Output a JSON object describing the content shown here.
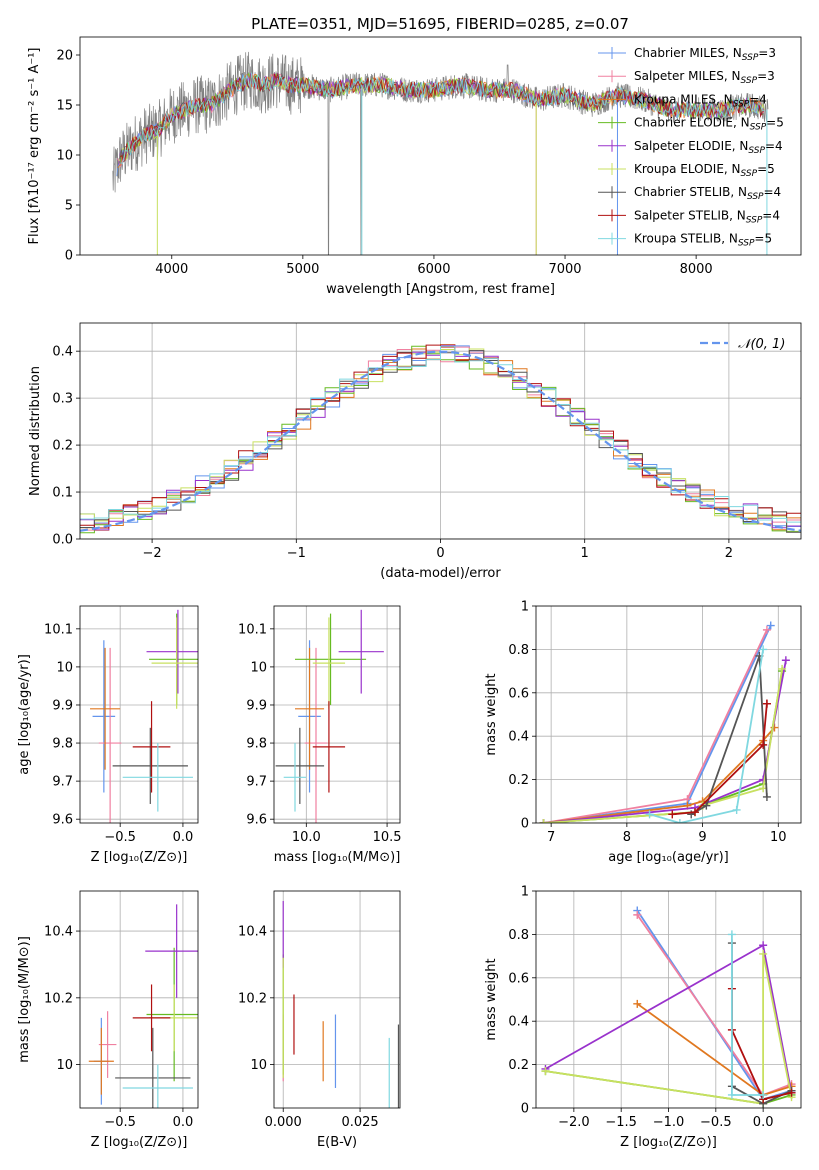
{
  "figure_title": "PLATE=0351, MJD=51695, FIBERID=0285, z=0.07",
  "colors": {
    "blue": "#6495ed",
    "pink": "#f080a0",
    "orange": "#e07820",
    "green": "#66bb22",
    "purple": "#9932cc",
    "yellowgreen": "#c8e060",
    "darkgray": "#555555",
    "red": "#b01010",
    "cyan": "#80d8e0",
    "grid": "#b0b0b0"
  },
  "chart_data": [
    {
      "id": "spectrum",
      "type": "line",
      "xlabel": "wavelength [Angstrom, rest frame]",
      "ylabel": "Flux [fλ10⁻¹⁷ erg cm⁻² s⁻¹ A⁻¹]",
      "xlim": [
        3300,
        8800
      ],
      "ylim": [
        0,
        21.8
      ],
      "xticks": [
        4000,
        5000,
        6000,
        7000,
        8000
      ],
      "yticks": [
        0,
        5,
        10,
        15,
        20
      ],
      "grid": false,
      "legend_position": "top-right",
      "data_x": [
        3550,
        3600,
        3700,
        3800,
        3900,
        4000,
        4100,
        4200,
        4300,
        4400,
        4500,
        4600,
        4700,
        4800,
        4900,
        5000,
        5200,
        5400,
        5600,
        5800,
        6000,
        6200,
        6400,
        6600,
        6800,
        7000,
        7200,
        7400,
        7600,
        7800,
        8000,
        8200,
        8400,
        8550
      ],
      "data_y": [
        7.5,
        9.5,
        11.0,
        12.0,
        12.5,
        14.0,
        14.5,
        15.0,
        15.0,
        16.0,
        17.0,
        17.5,
        17.0,
        17.5,
        17.0,
        17.0,
        16.5,
        17.0,
        17.0,
        16.5,
        16.5,
        17.0,
        16.5,
        16.5,
        15.5,
        16.0,
        15.0,
        16.0,
        15.5,
        14.5,
        14.5,
        14.5,
        15.0,
        14.5
      ],
      "series": [
        {
          "name": "Chabrier MILES, N_SSP=3",
          "color": "#6495ed"
        },
        {
          "name": "Salpeter MILES, N_SSP=3",
          "color": "#f080a0"
        },
        {
          "name": "Kroupa MILES, N_SSP=4",
          "color": "#e07820"
        },
        {
          "name": "Chabrier ELODIE, N_SSP=5",
          "color": "#66bb22"
        },
        {
          "name": "Salpeter ELODIE, N_SSP=4",
          "color": "#9932cc"
        },
        {
          "name": "Kroupa ELODIE, N_SSP=5",
          "color": "#c8e060"
        },
        {
          "name": "Chabrier STELIB, N_SSP=4",
          "color": "#555555"
        },
        {
          "name": "Salpeter STELIB, N_SSP=4",
          "color": "#b01010"
        },
        {
          "name": "Kroupa STELIB, N_SSP=5",
          "color": "#80d8e0"
        }
      ]
    },
    {
      "id": "residuals",
      "type": "area",
      "xlabel": "(data-model)/error",
      "ylabel": "Normed distribution",
      "xlim": [
        -2.5,
        2.5
      ],
      "ylim": [
        0,
        0.46
      ],
      "xticks": [
        -2,
        -1,
        0,
        1,
        2
      ],
      "xtick_labels": [
        "−2",
        "−1",
        "0",
        "1",
        "2"
      ],
      "yticks": [
        0.0,
        0.1,
        0.2,
        0.3,
        0.4
      ],
      "ytick_labels": [
        "0.0",
        "0.1",
        "0.2",
        "0.3",
        "0.4"
      ],
      "grid": true,
      "legend_position": "top-right",
      "reference": {
        "name": "𝒩(0, 1)",
        "mean": 0,
        "sigma": 1,
        "color": "#6495ed"
      },
      "bin_width": 0.1
    },
    {
      "id": "age_vs_Z",
      "type": "scatter",
      "xlabel": "Z [log₁₀(Z/Z⊙)]",
      "ylabel": "age  [log₁₀(age/yr)]",
      "xlim": [
        -0.82,
        0.12
      ],
      "ylim": [
        9.59,
        10.16
      ],
      "xticks": [
        -0.5,
        0.0
      ],
      "xtick_labels": [
        "−0.5",
        "0.0"
      ],
      "yticks": [
        9.6,
        9.7,
        9.8,
        9.9,
        10.0,
        10.1
      ],
      "grid": true,
      "points": [
        {
          "x": -0.63,
          "y": 9.87,
          "xerr": 0.09,
          "yerr": 0.2,
          "color": "#6495ed"
        },
        {
          "x": -0.58,
          "y": 9.8,
          "xerr": 0.09,
          "yerr": 0.25,
          "color": "#f080a0"
        },
        {
          "x": -0.62,
          "y": 9.89,
          "xerr": 0.12,
          "yerr": 0.16,
          "color": "#e07820"
        },
        {
          "x": -0.05,
          "y": 10.02,
          "xerr": 0.22,
          "yerr": 0.12,
          "color": "#66bb22"
        },
        {
          "x": -0.04,
          "y": 10.04,
          "xerr": 0.25,
          "yerr": 0.11,
          "color": "#9932cc"
        },
        {
          "x": -0.05,
          "y": 10.01,
          "xerr": 0.2,
          "yerr": 0.12,
          "color": "#c8e060"
        },
        {
          "x": -0.26,
          "y": 9.74,
          "xerr": 0.3,
          "yerr": 0.1,
          "color": "#555555"
        },
        {
          "x": -0.25,
          "y": 9.79,
          "xerr": 0.15,
          "yerr": 0.12,
          "color": "#b01010"
        },
        {
          "x": -0.2,
          "y": 9.71,
          "xerr": 0.28,
          "yerr": 0.09,
          "color": "#80d8e0"
        }
      ]
    },
    {
      "id": "age_vs_mass",
      "type": "scatter",
      "xlabel": "mass [log₁₀(M/M⊙)]",
      "ylabel": "",
      "xlim": [
        9.8,
        10.58
      ],
      "ylim": [
        9.59,
        10.16
      ],
      "xticks": [
        10.0,
        10.5
      ],
      "xtick_labels": [
        "10.0",
        "10.5"
      ],
      "yticks": [
        9.6,
        9.7,
        9.8,
        9.9,
        10.0,
        10.1
      ],
      "grid": true,
      "points": [
        {
          "x": 10.02,
          "y": 9.87,
          "xerr": 0.07,
          "yerr": 0.2,
          "color": "#6495ed"
        },
        {
          "x": 10.06,
          "y": 9.8,
          "xerr": 0.07,
          "yerr": 0.25,
          "color": "#f080a0"
        },
        {
          "x": 10.02,
          "y": 9.89,
          "xerr": 0.09,
          "yerr": 0.16,
          "color": "#e07820"
        },
        {
          "x": 10.15,
          "y": 10.02,
          "xerr": 0.22,
          "yerr": 0.12,
          "color": "#66bb22"
        },
        {
          "x": 10.34,
          "y": 10.04,
          "xerr": 0.14,
          "yerr": 0.11,
          "color": "#9932cc"
        },
        {
          "x": 10.14,
          "y": 10.01,
          "xerr": 0.1,
          "yerr": 0.12,
          "color": "#c8e060"
        },
        {
          "x": 9.96,
          "y": 9.74,
          "xerr": 0.15,
          "yerr": 0.1,
          "color": "#555555"
        },
        {
          "x": 10.14,
          "y": 9.79,
          "xerr": 0.1,
          "yerr": 0.12,
          "color": "#b01010"
        },
        {
          "x": 9.93,
          "y": 9.71,
          "xerr": 0.07,
          "yerr": 0.09,
          "color": "#80d8e0"
        }
      ]
    },
    {
      "id": "weight_vs_age",
      "type": "line",
      "xlabel": "age  [log₁₀(age/yr)]",
      "ylabel": "mass weight",
      "xlim": [
        6.8,
        10.3
      ],
      "ylim": [
        0,
        1.0
      ],
      "xticks": [
        7,
        8,
        9,
        10
      ],
      "yticks": [
        0.0,
        0.2,
        0.4,
        0.6,
        0.8,
        1.0
      ],
      "grid": true,
      "series": [
        {
          "color": "#6495ed",
          "x": [
            6.9,
            8.8,
            9.9
          ],
          "y": [
            0.0,
            0.09,
            0.91
          ]
        },
        {
          "color": "#f080a0",
          "x": [
            6.9,
            8.8,
            9.85
          ],
          "y": [
            0.0,
            0.11,
            0.89
          ]
        },
        {
          "color": "#e07820",
          "x": [
            6.9,
            8.8,
            9.0,
            9.8,
            9.95
          ],
          "y": [
            0.0,
            0.08,
            0.1,
            0.38,
            0.44
          ]
        },
        {
          "color": "#66bb22",
          "x": [
            6.9,
            8.9,
            9.0,
            9.8,
            10.05
          ],
          "y": [
            0.0,
            0.05,
            0.08,
            0.18,
            0.7
          ]
        },
        {
          "color": "#9932cc",
          "x": [
            6.9,
            8.9,
            9.8,
            10.1
          ],
          "y": [
            0.0,
            0.07,
            0.2,
            0.75
          ]
        },
        {
          "color": "#c8e060",
          "x": [
            6.9,
            8.9,
            9.0,
            9.8,
            10.05
          ],
          "y": [
            0.0,
            0.05,
            0.08,
            0.16,
            0.71
          ]
        },
        {
          "color": "#555555",
          "x": [
            8.85,
            9.05,
            9.75,
            9.85
          ],
          "y": [
            0.04,
            0.08,
            0.77,
            0.12
          ]
        },
        {
          "color": "#b01010",
          "x": [
            8.6,
            8.9,
            9.8,
            9.85,
            9.85
          ],
          "y": [
            0.04,
            0.05,
            0.36,
            0.55,
            0.55
          ]
        },
        {
          "color": "#80d8e0",
          "x": [
            8.3,
            8.7,
            9.45,
            9.8
          ],
          "y": [
            0.04,
            0.0,
            0.06,
            0.8
          ]
        }
      ]
    },
    {
      "id": "mass_vs_Z",
      "type": "scatter",
      "xlabel": "Z [log₁₀(Z/Z⊙)]",
      "ylabel": "mass [log₁₀(M/M⊙)]",
      "xlim": [
        -0.82,
        0.12
      ],
      "ylim": [
        9.87,
        10.52
      ],
      "xticks": [
        -0.5,
        0.0
      ],
      "xtick_labels": [
        "−0.5",
        "0.0"
      ],
      "yticks": [
        10.0,
        10.2,
        10.4
      ],
      "grid": true,
      "points": [
        {
          "x": -0.65,
          "y": 10.01,
          "xerr": 0.06,
          "yerr": 0.13,
          "color": "#6495ed"
        },
        {
          "x": -0.6,
          "y": 10.06,
          "xerr": 0.07,
          "yerr": 0.1,
          "color": "#f080a0"
        },
        {
          "x": -0.65,
          "y": 10.01,
          "xerr": 0.1,
          "yerr": 0.1,
          "color": "#e07820"
        },
        {
          "x": -0.07,
          "y": 10.15,
          "xerr": 0.22,
          "yerr": 0.2,
          "color": "#66bb22"
        },
        {
          "x": -0.05,
          "y": 10.34,
          "xerr": 0.25,
          "yerr": 0.14,
          "color": "#9932cc"
        },
        {
          "x": -0.07,
          "y": 10.14,
          "xerr": 0.2,
          "yerr": 0.1,
          "color": "#c8e060"
        },
        {
          "x": -0.24,
          "y": 9.96,
          "xerr": 0.3,
          "yerr": 0.15,
          "color": "#555555"
        },
        {
          "x": -0.25,
          "y": 10.14,
          "xerr": 0.15,
          "yerr": 0.1,
          "color": "#b01010"
        },
        {
          "x": -0.2,
          "y": 9.93,
          "xerr": 0.28,
          "yerr": 0.07,
          "color": "#80d8e0"
        }
      ]
    },
    {
      "id": "mass_vs_EBV",
      "type": "scatter",
      "xlabel": "E(B-V)",
      "ylabel": "",
      "xlim": [
        -0.003,
        0.038
      ],
      "ylim": [
        9.87,
        10.52
      ],
      "xticks": [
        0.0,
        0.025
      ],
      "xtick_labels": [
        "0.000",
        "0.025"
      ],
      "yticks": [
        10.0,
        10.2,
        10.4
      ],
      "grid": true,
      "points": [
        {
          "x": 0.017,
          "y": 10.04,
          "yerr": 0.11,
          "color": "#6495ed"
        },
        {
          "x": 0.0,
          "y": 10.05,
          "yerr": 0.1,
          "color": "#f080a0"
        },
        {
          "x": 0.013,
          "y": 10.04,
          "yerr": 0.09,
          "color": "#e07820"
        },
        {
          "x": 0.0,
          "y": 10.15,
          "yerr": 0.18,
          "color": "#66bb22"
        },
        {
          "x": 0.0,
          "y": 10.39,
          "yerr": 0.1,
          "color": "#9932cc"
        },
        {
          "x": 0.0,
          "y": 10.14,
          "yerr": 0.18,
          "color": "#c8e060"
        },
        {
          "x": 0.0375,
          "y": 9.99,
          "yerr": 0.13,
          "color": "#555555"
        },
        {
          "x": 0.0035,
          "y": 10.12,
          "yerr": 0.09,
          "color": "#b01010"
        },
        {
          "x": 0.0345,
          "y": 9.97,
          "yerr": 0.11,
          "color": "#80d8e0"
        }
      ]
    },
    {
      "id": "weight_vs_Z",
      "type": "line",
      "xlabel": "Z [log₁₀(Z/Z⊙)]",
      "ylabel": "mass weight",
      "xlim": [
        -2.4,
        0.4
      ],
      "ylim": [
        0,
        1.0
      ],
      "xticks": [
        -2.0,
        -1.5,
        -1.0,
        -0.5,
        0.0
      ],
      "xtick_labels": [
        "−2.0",
        "−1.5",
        "−1.0",
        "−0.5",
        "0.0"
      ],
      "yticks": [
        0.0,
        0.2,
        0.4,
        0.6,
        0.8,
        1.0
      ],
      "grid": true,
      "series": [
        {
          "color": "#6495ed",
          "x": [
            -1.33,
            0.0,
            0.3
          ],
          "y": [
            0.91,
            0.04,
            0.08
          ]
        },
        {
          "color": "#f080a0",
          "x": [
            -1.33,
            0.0,
            0.3
          ],
          "y": [
            0.89,
            0.06,
            0.11
          ]
        },
        {
          "color": "#e07820",
          "x": [
            -1.33,
            0.0,
            0.3
          ],
          "y": [
            0.48,
            0.06,
            0.1
          ]
        },
        {
          "color": "#66bb22",
          "x": [
            -2.3,
            0.0,
            0.3
          ],
          "y": [
            0.17,
            0.02,
            0.06
          ]
        },
        {
          "color": "#9932cc",
          "x": [
            -2.3,
            0.0,
            0.3
          ],
          "y": [
            0.18,
            0.75,
            0.07
          ]
        },
        {
          "color": "#c8e060",
          "x": [
            -2.3,
            0.0,
            0.0,
            0.3
          ],
          "y": [
            0.17,
            0.02,
            0.71,
            0.05
          ]
        },
        {
          "color": "#555555",
          "x": [
            -0.33,
            -0.33,
            0.0,
            0.3
          ],
          "y": [
            0.76,
            0.1,
            0.02,
            0.08
          ]
        },
        {
          "color": "#b01010",
          "x": [
            -0.33,
            -0.33,
            0.0,
            0.3
          ],
          "y": [
            0.55,
            0.36,
            0.04,
            0.07
          ]
        },
        {
          "color": "#80d8e0",
          "x": [
            -0.33,
            -0.33,
            0.0
          ],
          "y": [
            0.8,
            0.06,
            0.06
          ]
        }
      ]
    }
  ]
}
